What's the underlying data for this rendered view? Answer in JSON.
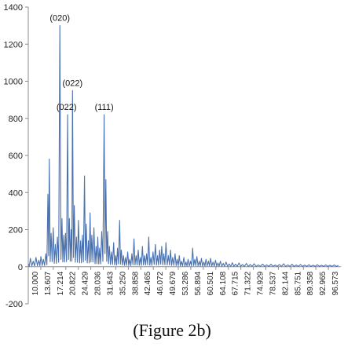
{
  "caption": "(Figure 2b)",
  "chart_data": {
    "type": "line",
    "title": "",
    "xlabel": "",
    "ylabel": "",
    "ylim": [
      -200,
      1400
    ],
    "yticks": [
      -200,
      0,
      200,
      400,
      600,
      800,
      1000,
      1200,
      1400
    ],
    "xlim": [
      10.0,
      99.0
    ],
    "xtick_labels": [
      "10.000",
      "13.607",
      "17.214",
      "20.822",
      "24.429",
      "28.036",
      "31.643",
      "35.250",
      "38.858",
      "42.465",
      "46.072",
      "49.679",
      "53.286",
      "56.894",
      "60.501",
      "64.108",
      "67.715",
      "71.322",
      "74.929",
      "78.537",
      "82.144",
      "85.751",
      "89.358",
      "92.965",
      "96.573"
    ],
    "series_color": "#4A72B0",
    "grid": false,
    "annotations": [
      {
        "text": "(020)",
        "x": 19.0,
        "y": 1300
      },
      {
        "text": "(022)",
        "x": 20.9,
        "y": 820
      },
      {
        "text": "(022)",
        "x": 22.6,
        "y": 950
      },
      {
        "text": "(111)",
        "x": 31.6,
        "y": 820
      }
    ],
    "peaks": [
      [
        10.0,
        15
      ],
      [
        10.6,
        45
      ],
      [
        11.4,
        30
      ],
      [
        12.2,
        50
      ],
      [
        13.0,
        35
      ],
      [
        13.6,
        55
      ],
      [
        14.3,
        40
      ],
      [
        15.0,
        70
      ],
      [
        15.6,
        390
      ],
      [
        16.0,
        580
      ],
      [
        16.5,
        180
      ],
      [
        17.1,
        210
      ],
      [
        17.7,
        120
      ],
      [
        18.3,
        160
      ],
      [
        19.0,
        1300
      ],
      [
        19.6,
        260
      ],
      [
        20.1,
        170
      ],
      [
        20.6,
        180
      ],
      [
        21.2,
        820
      ],
      [
        21.7,
        260
      ],
      [
        22.2,
        200
      ],
      [
        22.6,
        950
      ],
      [
        23.1,
        330
      ],
      [
        23.7,
        160
      ],
      [
        24.3,
        250
      ],
      [
        24.9,
        140
      ],
      [
        25.4,
        170
      ],
      [
        26.0,
        490
      ],
      [
        26.5,
        230
      ],
      [
        27.1,
        140
      ],
      [
        27.6,
        290
      ],
      [
        28.1,
        170
      ],
      [
        28.7,
        210
      ],
      [
        29.3,
        110
      ],
      [
        29.8,
        160
      ],
      [
        30.3,
        100
      ],
      [
        30.9,
        190
      ],
      [
        31.6,
        820
      ],
      [
        32.1,
        470
      ],
      [
        32.6,
        190
      ],
      [
        33.1,
        110
      ],
      [
        33.7,
        80
      ],
      [
        34.3,
        130
      ],
      [
        34.9,
        60
      ],
      [
        35.4,
        100
      ],
      [
        36.0,
        250
      ],
      [
        36.5,
        90
      ],
      [
        37.1,
        60
      ],
      [
        37.7,
        50
      ],
      [
        38.3,
        80
      ],
      [
        38.9,
        40
      ],
      [
        39.5,
        70
      ],
      [
        40.1,
        150
      ],
      [
        40.7,
        60
      ],
      [
        41.3,
        90
      ],
      [
        41.9,
        50
      ],
      [
        42.5,
        110
      ],
      [
        43.1,
        60
      ],
      [
        43.7,
        70
      ],
      [
        44.3,
        160
      ],
      [
        44.9,
        50
      ],
      [
        45.5,
        80
      ],
      [
        46.2,
        120
      ],
      [
        46.8,
        60
      ],
      [
        47.4,
        90
      ],
      [
        48.0,
        110
      ],
      [
        48.6,
        70
      ],
      [
        49.2,
        130
      ],
      [
        49.9,
        60
      ],
      [
        50.5,
        90
      ],
      [
        51.1,
        50
      ],
      [
        51.8,
        70
      ],
      [
        52.4,
        40
      ],
      [
        53.0,
        60
      ],
      [
        53.6,
        30
      ],
      [
        54.3,
        50
      ],
      [
        54.9,
        25
      ],
      [
        55.5,
        40
      ],
      [
        56.2,
        30
      ],
      [
        56.8,
        100
      ],
      [
        57.4,
        40
      ],
      [
        58.0,
        55
      ],
      [
        58.7,
        30
      ],
      [
        59.3,
        45
      ],
      [
        60.0,
        25
      ],
      [
        60.6,
        40
      ],
      [
        61.3,
        30
      ],
      [
        61.9,
        45
      ],
      [
        62.6,
        25
      ],
      [
        63.3,
        35
      ],
      [
        64.0,
        20
      ],
      [
        64.7,
        30
      ],
      [
        65.5,
        18
      ],
      [
        66.3,
        25
      ],
      [
        67.2,
        15
      ],
      [
        68.1,
        22
      ],
      [
        69.0,
        14
      ],
      [
        70.0,
        20
      ],
      [
        71.0,
        12
      ],
      [
        72.1,
        18
      ],
      [
        73.2,
        12
      ],
      [
        74.3,
        16
      ],
      [
        75.5,
        10
      ],
      [
        76.7,
        14
      ],
      [
        77.9,
        10
      ],
      [
        79.1,
        13
      ],
      [
        80.3,
        9
      ],
      [
        81.5,
        12
      ],
      [
        82.7,
        16
      ],
      [
        83.9,
        10
      ],
      [
        85.1,
        13
      ],
      [
        86.3,
        9
      ],
      [
        87.5,
        12
      ],
      [
        88.7,
        9
      ],
      [
        89.9,
        11
      ],
      [
        91.1,
        8
      ],
      [
        92.3,
        11
      ],
      [
        93.5,
        8
      ],
      [
        94.7,
        10
      ],
      [
        95.9,
        8
      ],
      [
        97.1,
        10
      ],
      [
        98.3,
        7
      ]
    ]
  }
}
